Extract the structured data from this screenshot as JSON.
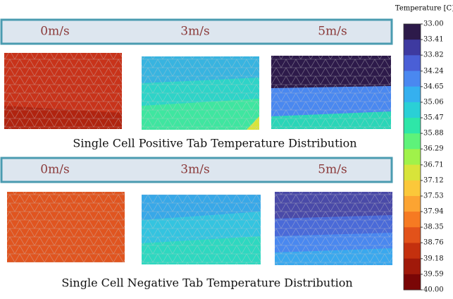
{
  "rows": [
    {
      "labels": [
        "0m/s",
        "3m/s",
        "5m/s"
      ],
      "caption": "Single Cell Positive Tab Temperature Distribution"
    },
    {
      "labels": [
        "0m/s",
        "3m/s",
        "5m/s"
      ],
      "caption": "Single Cell Negative Tab Temperature Distribution"
    }
  ],
  "colorbar": {
    "title": "Temperature [C]",
    "ticks": [
      {
        "value": 33,
        "label": "33.00"
      },
      33.41,
      33.82,
      34.24,
      34.65,
      35.06,
      35.47,
      35.88,
      36.29,
      36.71,
      37.12,
      37.53,
      37.94,
      38.35,
      38.76,
      39.18,
      39.59,
      {
        "value": 40,
        "label": "40.00"
      }
    ],
    "colors": [
      "#2d1a4a",
      "#3e3aa0",
      "#4a5fd6",
      "#4a88f0",
      "#35b0ef",
      "#2ad0d6",
      "#2ee6a8",
      "#5ef27a",
      "#a0f24a",
      "#d8e43a",
      "#fbc83a",
      "#fca432",
      "#f67a22",
      "#e2521a",
      "#c4300e",
      "#a0190a",
      "#7a0606"
    ]
  }
}
